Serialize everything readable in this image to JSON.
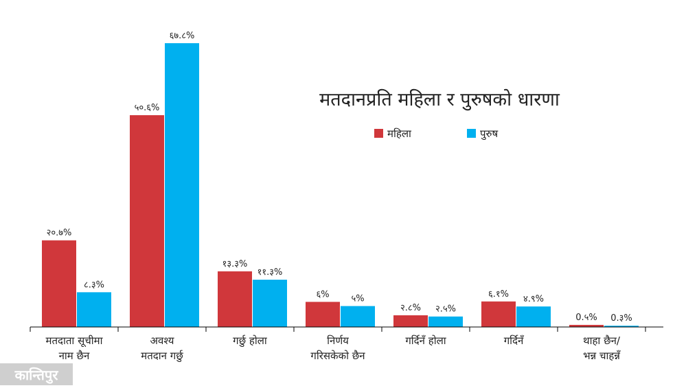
{
  "chart_data": {
    "type": "bar",
    "title": "मतदानप्रति महिला र पुरुषको धारणा",
    "categories": [
      [
        "मतदाता सूचीमा",
        "नाम छैन"
      ],
      [
        "अवश्य",
        "मतदान गर्छु"
      ],
      [
        "गर्छु होला"
      ],
      [
        "निर्णय",
        "गरिसकेको छैन"
      ],
      [
        "गर्दिनँ होला"
      ],
      [
        "गर्दिनँ"
      ],
      [
        "थाहा छैन/",
        "भन्न चाहन्नँ"
      ]
    ],
    "series": [
      {
        "name": "महिला",
        "color": "#d0373b",
        "values": [
          20.7,
          50.6,
          13.3,
          6,
          2.8,
          6.1,
          0.5
        ],
        "labels": [
          "२०.७%",
          "५०.६%",
          "१३.३%",
          "६%",
          "२.८%",
          "६.१%",
          "0.५%"
        ]
      },
      {
        "name": "पुरुष",
        "color": "#00b0ef",
        "values": [
          8.3,
          67.8,
          11.3,
          5,
          2.5,
          4.9,
          0.3
        ],
        "labels": [
          "८.३%",
          "६७.८%",
          "११.३%",
          "५%",
          "२.५%",
          "४.९%",
          "0.३%"
        ]
      }
    ],
    "ylim": [
      0,
      70
    ],
    "grid": false,
    "legend_position": "top-right"
  },
  "watermark": "कान्तिपुर"
}
